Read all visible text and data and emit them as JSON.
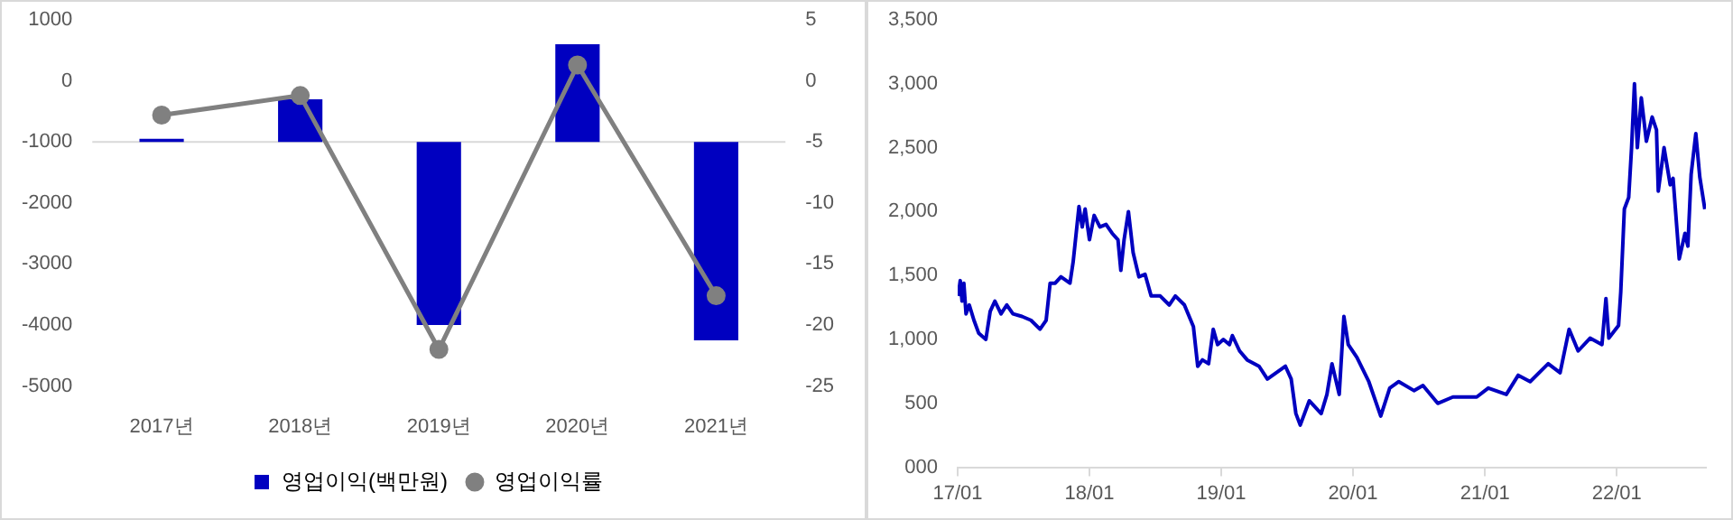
{
  "chart_data": [
    {
      "type": "bar",
      "categories": [
        "2017년",
        "2018년",
        "2019년",
        "2020년",
        "2021년"
      ],
      "series": [
        {
          "name": "영업이익(백만원)",
          "type": "bar",
          "color": "#0000c0",
          "base": [
            -1000,
            -1000,
            -1000,
            -1000,
            -1000
          ],
          "values": [
            50,
            700,
            -3000,
            1600,
            -3250
          ]
        },
        {
          "name": "영업이익률",
          "type": "line",
          "axis": "y2",
          "color": "#808080",
          "values": [
            -2.8,
            -1.2,
            -22,
            1.3,
            -17.6
          ]
        }
      ],
      "marker": "circle",
      "ylim": [
        -5000,
        1000
      ],
      "yticks": [
        -5000,
        -4000,
        -3000,
        -2000,
        -1000,
        0,
        1000
      ],
      "y2lim": [
        -25,
        5
      ],
      "y2ticks": [
        -25,
        -20,
        -15,
        -10,
        -5,
        0,
        5
      ],
      "ref_lines": [
        {
          "axis": "y",
          "value": -1000,
          "color": "#d9d9d9"
        }
      ],
      "legend": "bottom"
    },
    {
      "type": "line",
      "color": "#0000c0",
      "x": [
        "2017-01-02",
        "2017-01-08",
        "2017-01-13",
        "2017-01-18",
        "2017-01-24",
        "2017-02-02",
        "2017-02-15",
        "2017-02-28",
        "2017-03-20",
        "2017-04-01",
        "2017-04-14",
        "2017-05-01",
        "2017-05-17",
        "2017-06-03",
        "2017-06-28",
        "2017-07-23",
        "2017-08-17",
        "2017-09-03",
        "2017-09-14",
        "2017-09-28",
        "2017-10-14",
        "2017-11-08",
        "2017-11-17",
        "2017-12-03",
        "2017-12-12",
        "2017-12-20",
        "2018-01-01",
        "2018-01-14",
        "2018-01-30",
        "2018-02-16",
        "2018-03-05",
        "2018-03-21",
        "2018-03-29",
        "2018-04-07",
        "2018-04-19",
        "2018-05-02",
        "2018-05-18",
        "2018-06-04",
        "2018-06-21",
        "2018-07-16",
        "2018-08-10",
        "2018-08-27",
        "2018-09-21",
        "2018-10-16",
        "2018-10-28",
        "2018-11-10",
        "2018-11-27",
        "2018-12-10",
        "2018-12-22",
        "2019-01-07",
        "2019-01-24",
        "2019-02-01",
        "2019-02-21",
        "2019-03-14",
        "2019-04-16",
        "2019-05-09",
        "2019-06-28",
        "2019-07-14",
        "2019-07-27",
        "2019-08-08",
        "2019-09-02",
        "2019-10-05",
        "2019-10-21",
        "2019-11-04",
        "2019-11-24",
        "2019-12-07",
        "2019-12-19",
        "2020-01-12",
        "2020-02-14",
        "2020-03-18",
        "2020-04-12",
        "2020-05-07",
        "2020-06-18",
        "2020-07-13",
        "2020-08-23",
        "2020-10-04",
        "2020-12-09",
        "2021-01-10",
        "2021-03-01",
        "2021-04-03",
        "2021-05-06",
        "2021-06-25",
        "2021-07-28",
        "2021-08-22",
        "2021-09-16",
        "2021-10-19",
        "2021-11-21",
        "2021-12-02",
        "2021-12-10",
        "2022-01-06",
        "2022-01-12",
        "2022-01-22",
        "2022-02-03",
        "2022-02-11",
        "2022-02-19",
        "2022-02-27",
        "2022-03-10",
        "2022-03-24",
        "2022-04-09",
        "2022-04-21",
        "2022-04-26",
        "2022-05-12",
        "2022-05-29",
        "2022-06-06",
        "2022-06-23",
        "2022-07-09",
        "2022-07-17",
        "2022-07-26",
        "2022-08-08",
        "2022-08-19",
        "2022-09-02"
      ],
      "values": [
        1340,
        1460,
        1300,
        1440,
        1200,
        1270,
        1150,
        1050,
        1000,
        1220,
        1300,
        1200,
        1270,
        1200,
        1180,
        1150,
        1080,
        1150,
        1440,
        1440,
        1490,
        1440,
        1610,
        2040,
        1880,
        2020,
        1780,
        1970,
        1880,
        1900,
        1830,
        1780,
        1540,
        1780,
        2000,
        1680,
        1490,
        1510,
        1340,
        1340,
        1270,
        1340,
        1270,
        1100,
        790,
        840,
        810,
        1080,
        960,
        1000,
        960,
        1030,
        910,
        840,
        790,
        690,
        790,
        690,
        420,
        330,
        520,
        420,
        570,
        810,
        570,
        1180,
        960,
        860,
        670,
        400,
        620,
        670,
        600,
        640,
        500,
        550,
        550,
        620,
        570,
        720,
        670,
        810,
        740,
        1080,
        910,
        1010,
        960,
        1320,
        1010,
        1110,
        1370,
        2020,
        2110,
        2500,
        3000,
        2500,
        2890,
        2550,
        2740,
        2640,
        2160,
        2500,
        2210,
        2260,
        1630,
        1830,
        1730,
        2290,
        2610,
        2270,
        2020
      ],
      "xlim": [
        "2017-01-01",
        "2022-09-05"
      ],
      "xticks": [
        {
          "value": "2017-01-01",
          "label": "17/01"
        },
        {
          "value": "2018-01-01",
          "label": "18/01"
        },
        {
          "value": "2019-01-01",
          "label": "19/01"
        },
        {
          "value": "2020-01-01",
          "label": "20/01"
        },
        {
          "value": "2021-01-01",
          "label": "21/01"
        },
        {
          "value": "2022-01-01",
          "label": "22/01"
        }
      ],
      "ylim": [
        0,
        3500
      ],
      "yticks": [
        {
          "value": 0,
          "label": "000"
        },
        500,
        {
          "value": 1000,
          "label": "1,000"
        },
        {
          "value": 1500,
          "label": "1,500"
        },
        {
          "value": 2000,
          "label": "2,000"
        },
        {
          "value": 2500,
          "label": "2,500"
        },
        {
          "value": 3000,
          "label": "3,000"
        },
        {
          "value": 3500,
          "label": "3,500"
        }
      ]
    }
  ]
}
